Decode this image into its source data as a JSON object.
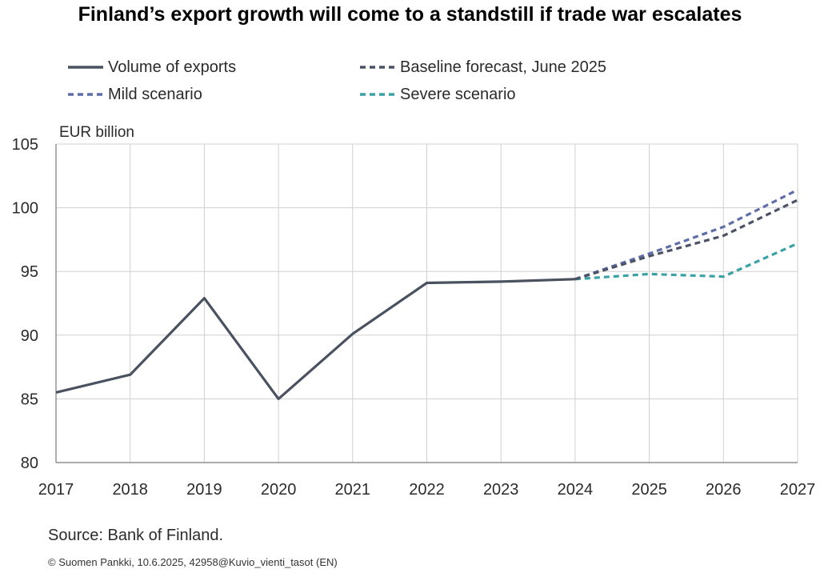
{
  "title": "Finland’s export growth will come to a standstill if trade war escalates",
  "unit_label": "EUR billion",
  "source": "Source:  Bank of Finland.",
  "copyright": "© Suomen Pankki, 10.6.2025, 42958@Kuvio_vienti_tasot (EN)",
  "chart_data": {
    "type": "line",
    "title": "Finland’s export growth will come to a standstill if trade war escalates",
    "xlabel": "",
    "ylabel": "EUR billion",
    "x": [
      2017,
      2018,
      2019,
      2020,
      2021,
      2022,
      2023,
      2024,
      2025,
      2026,
      2027
    ],
    "ylim": [
      80,
      105
    ],
    "yticks": [
      80,
      85,
      90,
      95,
      100,
      105
    ],
    "grid": true,
    "legend_position": "top",
    "series": [
      {
        "name": "Volume of exports",
        "style": "solid",
        "color": "#4a5260",
        "points": [
          [
            2017,
            85.5
          ],
          [
            2018,
            86.9
          ],
          [
            2019,
            92.9
          ],
          [
            2020,
            85.0
          ],
          [
            2021,
            90.1
          ],
          [
            2022,
            94.1
          ],
          [
            2023,
            94.2
          ],
          [
            2024,
            94.4
          ]
        ]
      },
      {
        "name": "Baseline forecast, June 2025",
        "style": "dashed",
        "color": "#4c5266",
        "points": [
          [
            2024,
            94.4
          ],
          [
            2025,
            96.2
          ],
          [
            2026,
            97.8
          ],
          [
            2027,
            100.6
          ]
        ]
      },
      {
        "name": "Mild scenario",
        "style": "dashed",
        "color": "#5f6ea8",
        "points": [
          [
            2024,
            94.4
          ],
          [
            2025,
            96.4
          ],
          [
            2026,
            98.5
          ],
          [
            2027,
            101.4
          ]
        ]
      },
      {
        "name": "Severe scenario",
        "style": "dashed",
        "color": "#3aa2a4",
        "points": [
          [
            2024,
            94.4
          ],
          [
            2025,
            94.8
          ],
          [
            2026,
            94.6
          ],
          [
            2027,
            97.2
          ]
        ]
      }
    ]
  }
}
